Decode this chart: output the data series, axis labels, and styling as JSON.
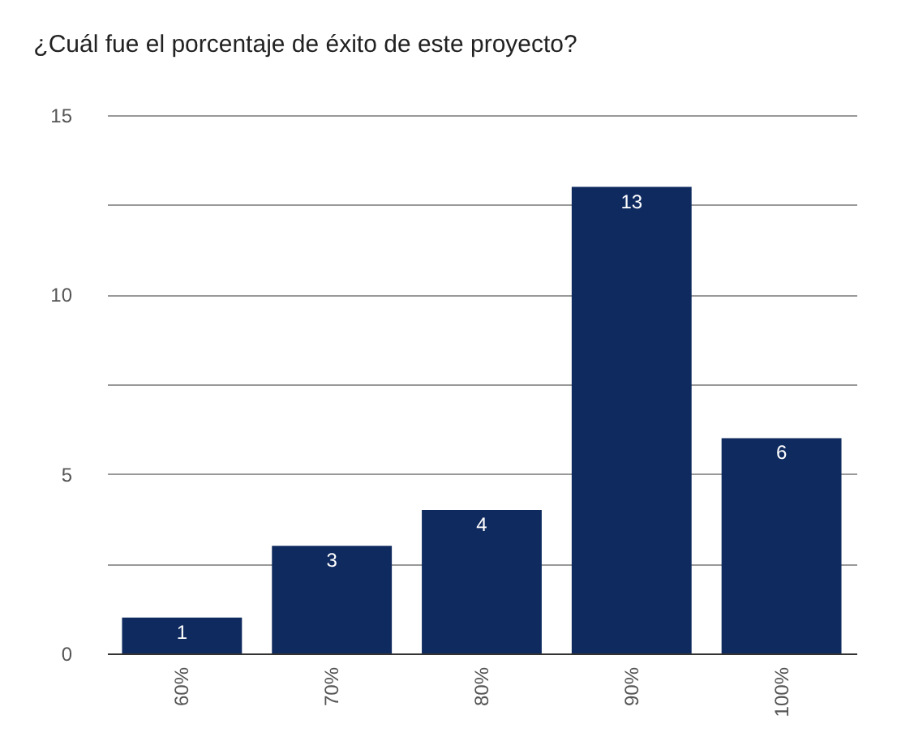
{
  "chart_data": {
    "type": "bar",
    "title": "¿Cuál fue el porcentaje de éxito de este proyecto?",
    "categories": [
      "60%",
      "70%",
      "80%",
      "90%",
      "100%"
    ],
    "values": [
      1,
      3,
      4,
      13,
      6
    ],
    "color": "#0f2a5f",
    "ylim": [
      0,
      15
    ],
    "yticks": [
      0,
      {
        "value": 2.5,
        "label": null
      },
      5,
      {
        "value": 7.5,
        "label": null
      },
      10,
      {
        "value": 12.5,
        "label": null
      },
      15
    ],
    "grid": true,
    "data_labels": true
  }
}
